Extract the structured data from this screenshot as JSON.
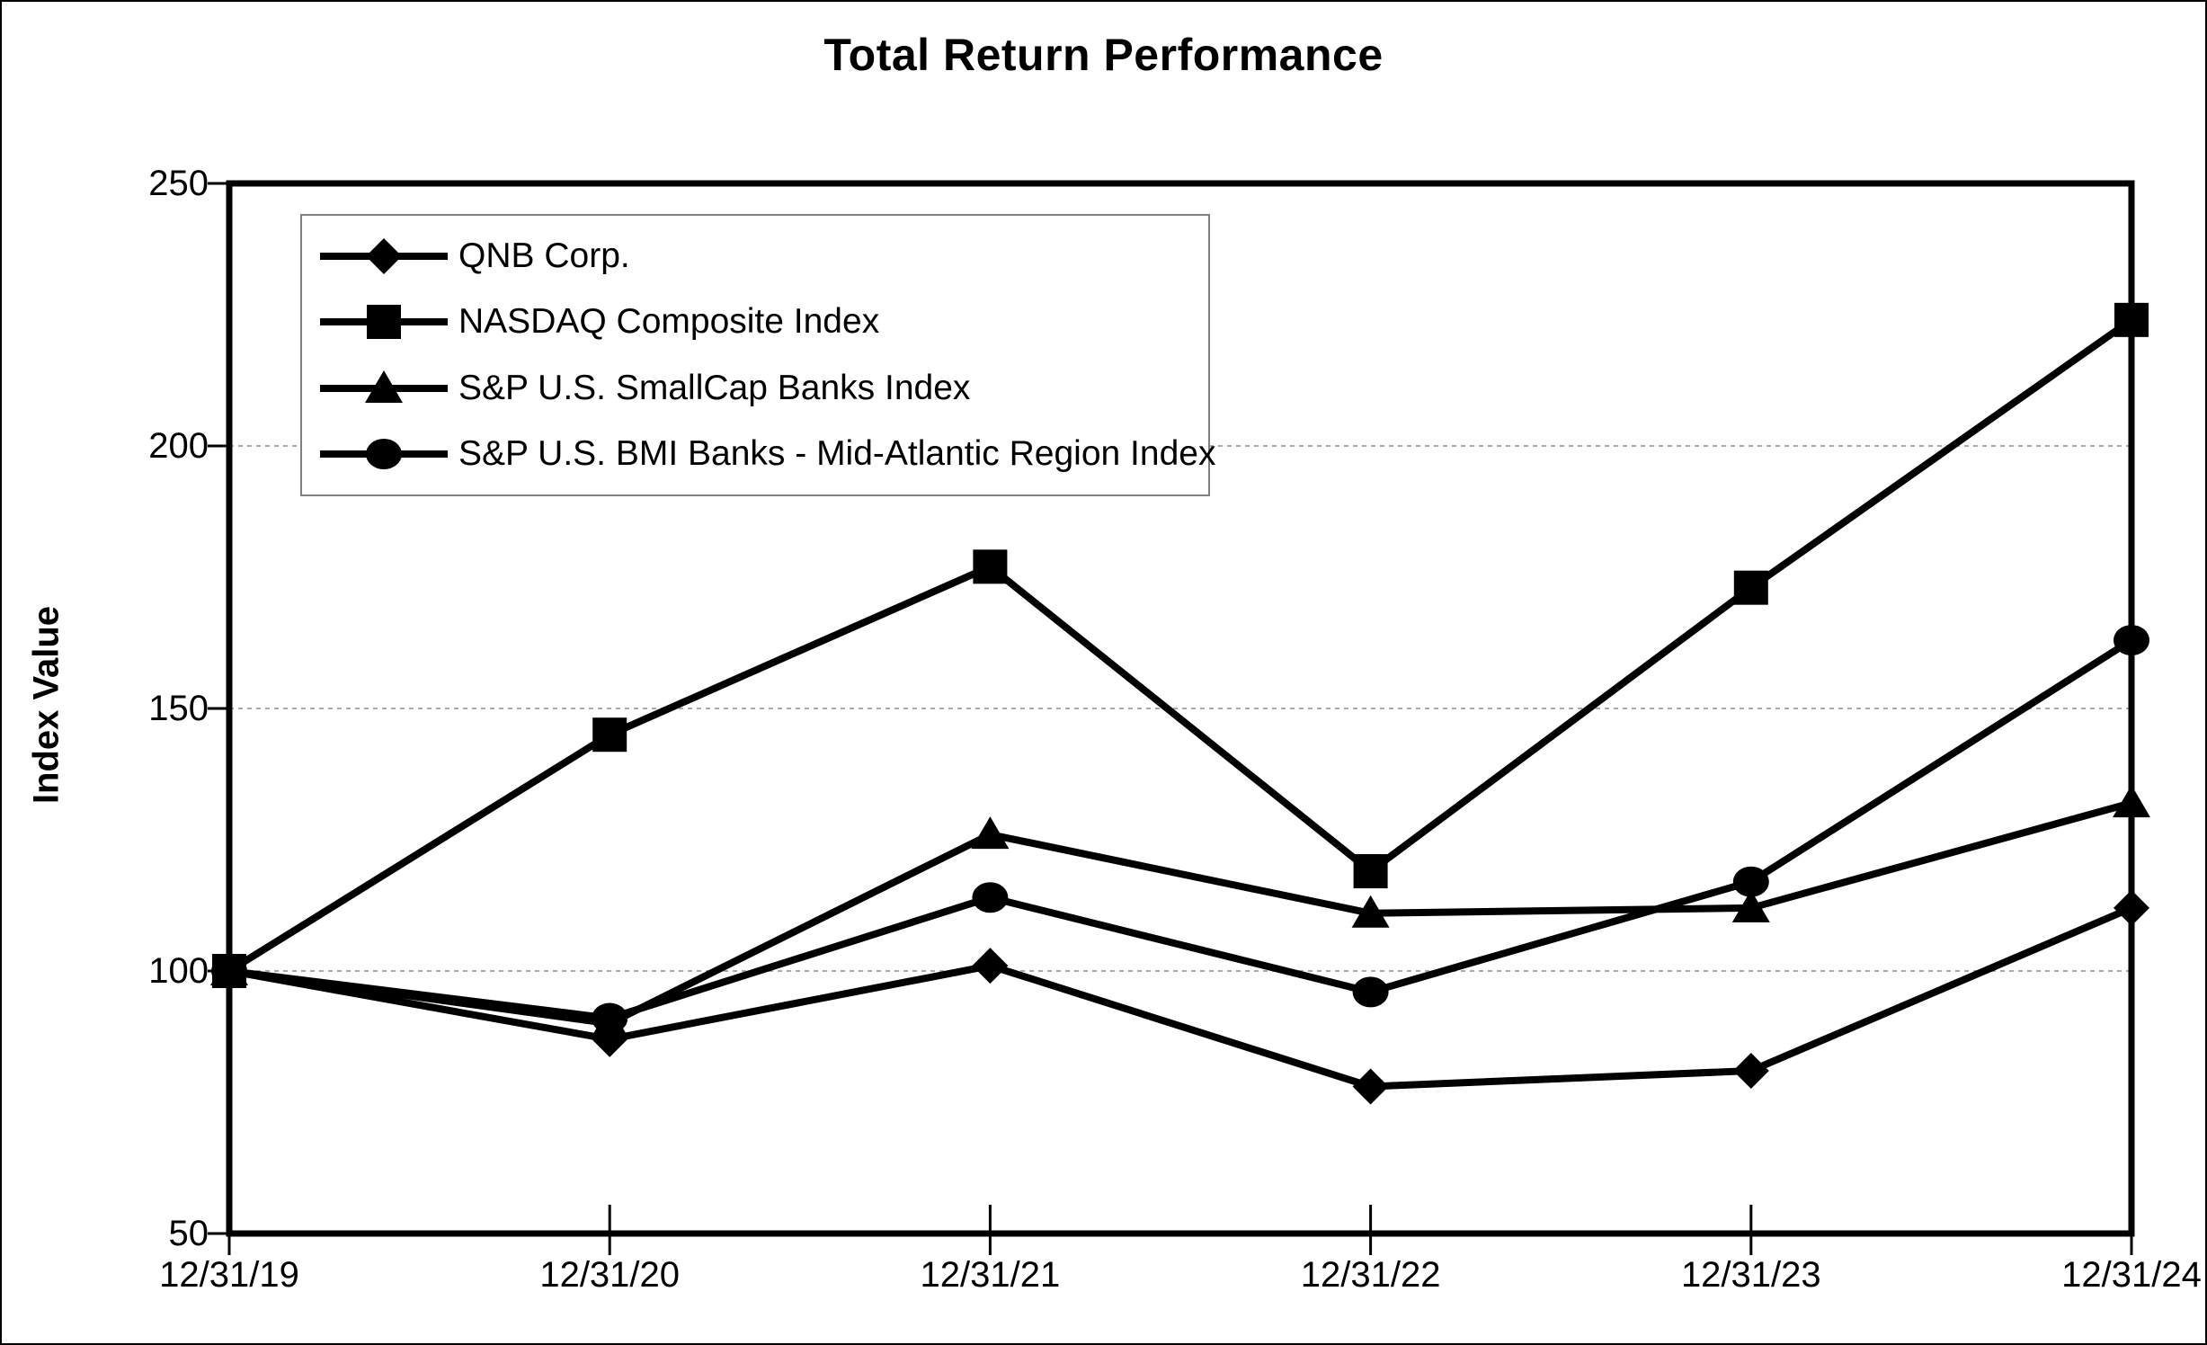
{
  "chart_data": {
    "type": "line",
    "title": "Total Return Performance",
    "ylabel": "Index Value",
    "xlabel": "",
    "categories": [
      "12/31/19",
      "12/31/20",
      "12/31/21",
      "12/31/22",
      "12/31/23",
      "12/31/24"
    ],
    "y_ticks": [
      50,
      100,
      150,
      200,
      250
    ],
    "ylim": [
      50,
      250
    ],
    "grid": "horizontal-dashed",
    "legend_position": "top-left-inside",
    "colors": {
      "line": "#000000",
      "grid": "#aaaaaa",
      "legend_border": "#808080",
      "background": "#ffffff"
    },
    "series": [
      {
        "name": "QNB Corp.",
        "marker": "diamond",
        "values": [
          100,
          87,
          101,
          78,
          81,
          112
        ]
      },
      {
        "name": "NASDAQ Composite Index",
        "marker": "square",
        "values": [
          100,
          145,
          177,
          119,
          173,
          224
        ]
      },
      {
        "name": "S&P U.S. SmallCap Banks Index",
        "marker": "triangle",
        "values": [
          100,
          90,
          126,
          111,
          112,
          132
        ]
      },
      {
        "name": "S&P U.S. BMI Banks - Mid-Atlantic Region Index",
        "marker": "circle",
        "values": [
          100,
          91,
          114,
          96,
          117,
          163
        ]
      }
    ]
  }
}
